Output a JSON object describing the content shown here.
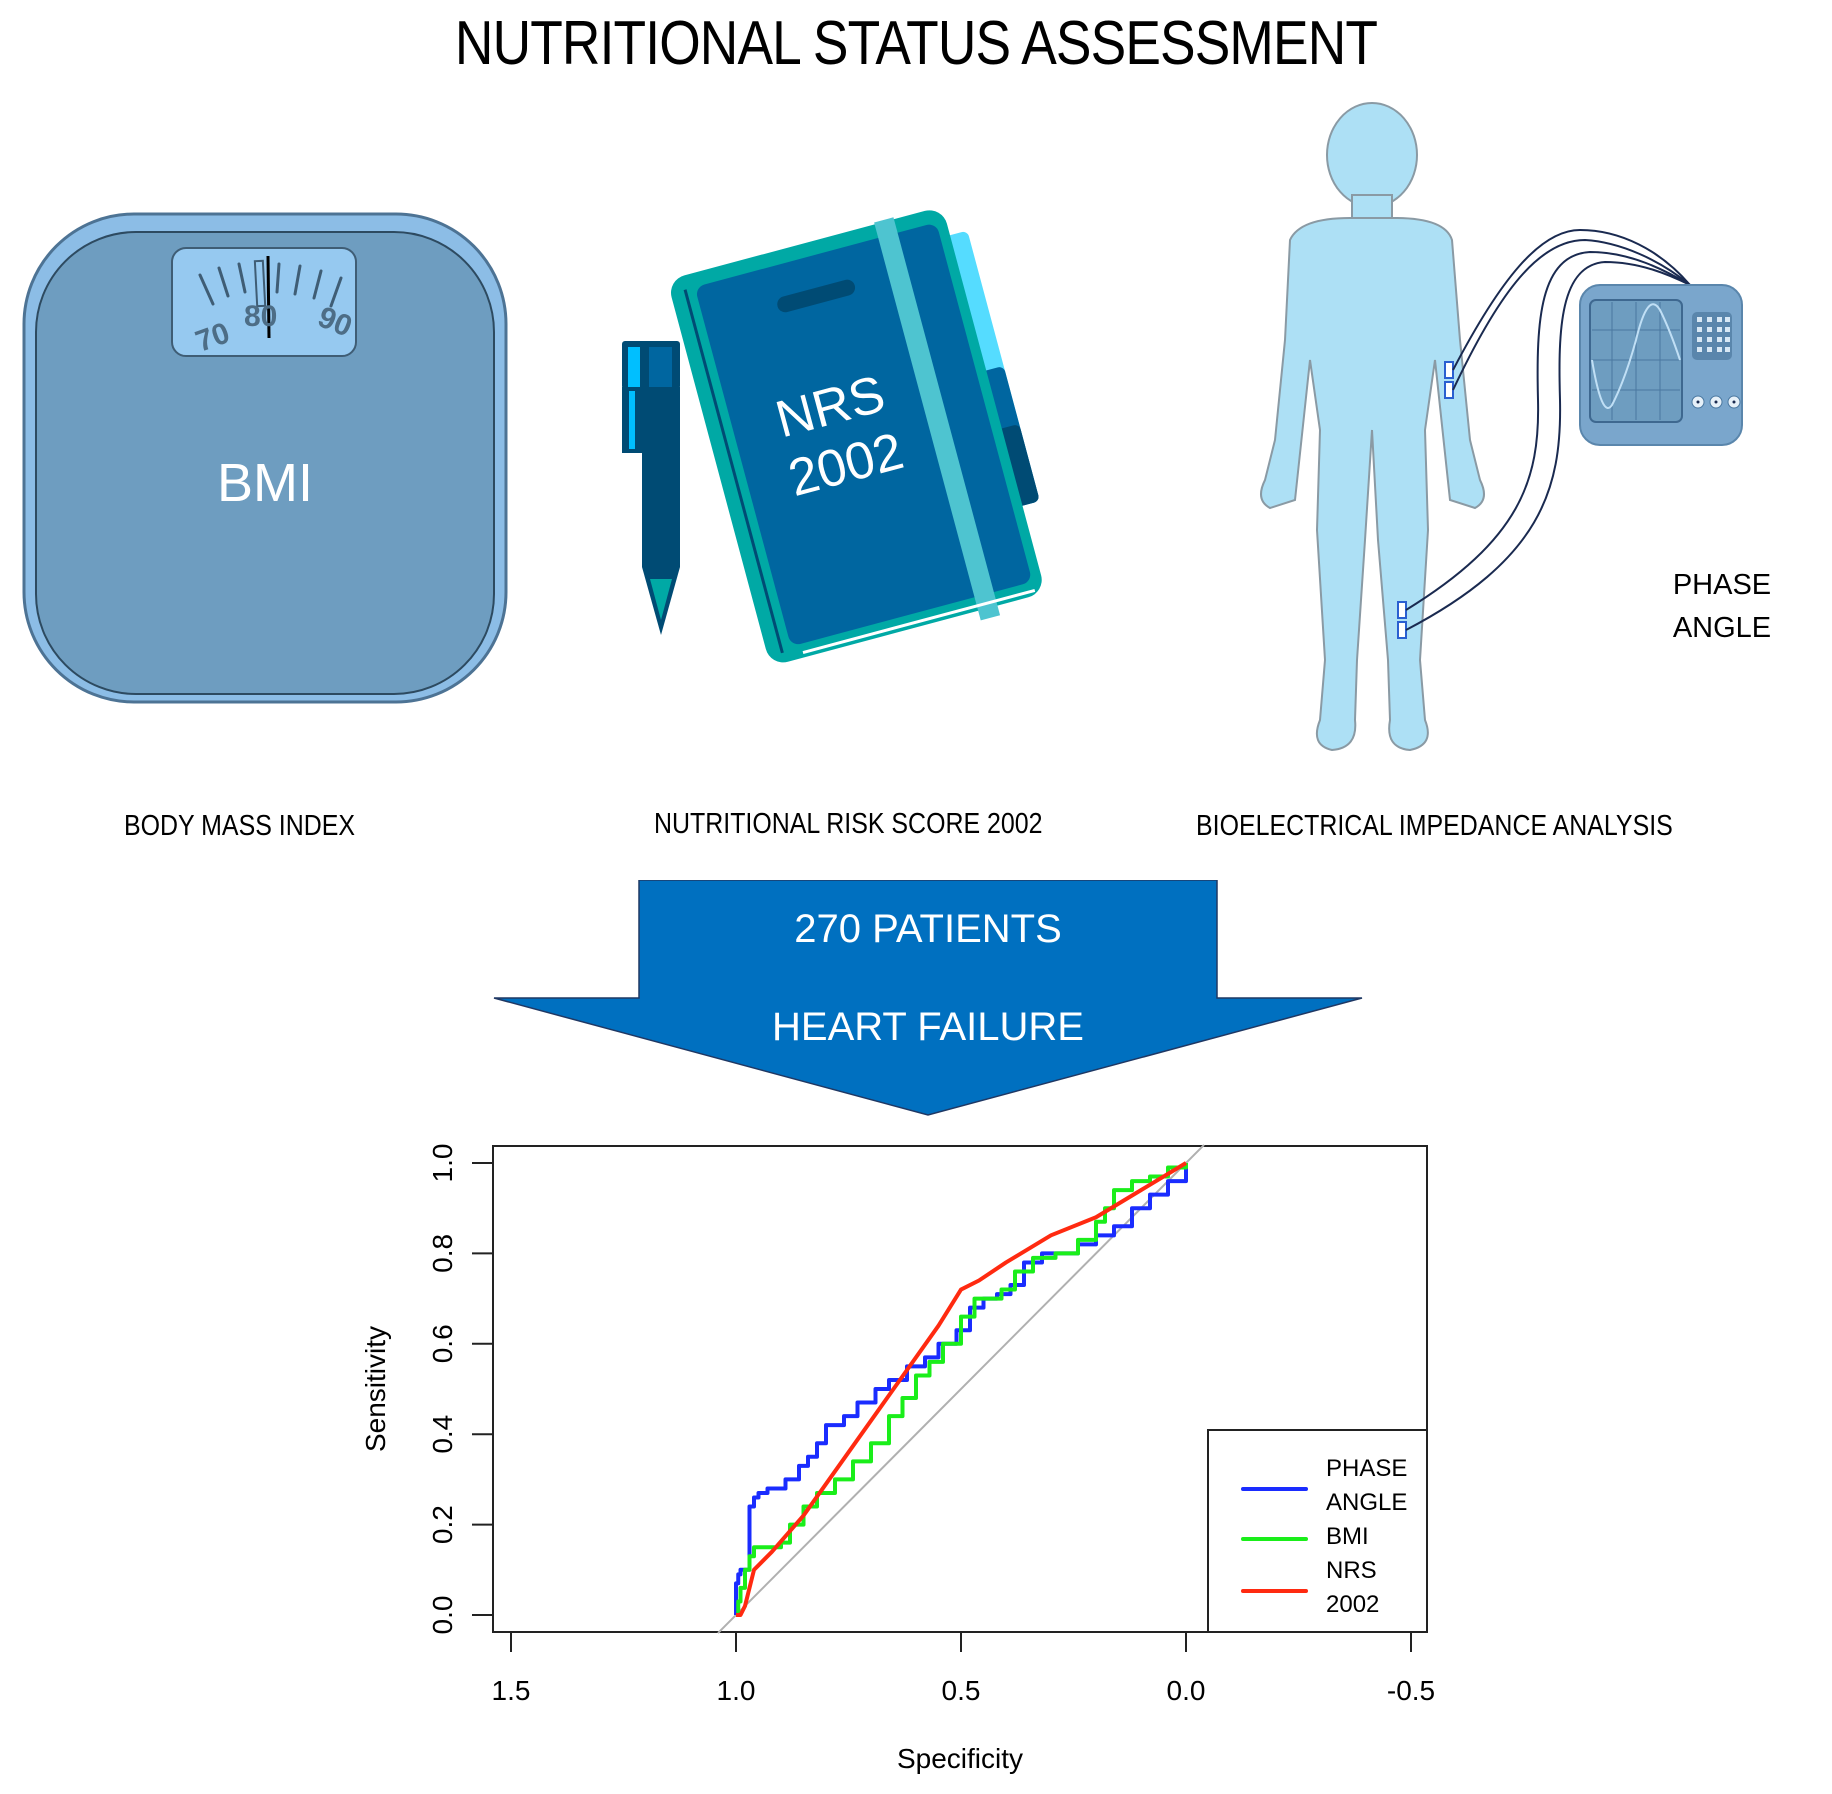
{
  "title": "NUTRITIONAL STATUS ASSESSMENT",
  "methods": [
    {
      "id": "bmi",
      "icon": "bathroom-scale-icon",
      "icon_text": "BMI",
      "dial_labels": [
        "70",
        "80",
        "90"
      ],
      "label": "BODY MASS INDEX"
    },
    {
      "id": "nrs",
      "icon": "notebook-and-pen-icon",
      "icon_text_line1": "NRS",
      "icon_text_line2": "2002",
      "label": "NUTRITIONAL RISK SCORE 2002"
    },
    {
      "id": "bia",
      "icon": "body-with-impedance-analyzer-icon",
      "device_label_line1": "PHASE",
      "device_label_line2": "ANGLE",
      "label": "BIOELECTRICAL IMPEDANCE ANALYSIS"
    }
  ],
  "arrow": {
    "line1": "270 PATIENTS",
    "line2": "HEART FAILURE",
    "color": "#0070c0"
  },
  "colors": {
    "scale_body": "#6e9dc0",
    "scale_rim": "#8cbde6",
    "dial_face": "#96c9f0",
    "book_cover": "#0066a0",
    "book_edge": "#00a9a5",
    "book_band": "#4ec4d0",
    "pen_dark": "#004b74",
    "body_silhouette": "#ade0f5",
    "device": "#7aa6cc",
    "phase_angle": "#1a2cff",
    "bmi": "#1aee1a",
    "nrs": "#ff2a10",
    "reference": "#b0b0b0"
  },
  "chart_data": {
    "type": "line",
    "title": "",
    "xlabel": "Specificity",
    "ylabel": "Sensitivity",
    "x_reversed": true,
    "xlim": [
      1.55,
      -0.55
    ],
    "ylim": [
      -0.04,
      1.04
    ],
    "x_ticks": [
      "1.5",
      "1.0",
      "0.5",
      "0.0",
      "-0.5"
    ],
    "y_ticks": [
      "0.0",
      "0.2",
      "0.4",
      "0.6",
      "0.8",
      "1.0"
    ],
    "grid": false,
    "legend_position": "bottom-right",
    "reference_line": {
      "name": "chance diagonal",
      "x": [
        1.04,
        -0.04
      ],
      "y": [
        -0.04,
        1.04
      ]
    },
    "series": [
      {
        "name": "PHASE ANGLE",
        "legend_lines": [
          "PHASE",
          "ANGLE"
        ],
        "color": "#1a2cff",
        "x": [
          1.0,
          1.0,
          0.995,
          0.99,
          0.97,
          0.97,
          0.96,
          0.95,
          0.93,
          0.91,
          0.89,
          0.86,
          0.84,
          0.82,
          0.8,
          0.76,
          0.73,
          0.69,
          0.66,
          0.62,
          0.58,
          0.55,
          0.51,
          0.48,
          0.45,
          0.42,
          0.39,
          0.36,
          0.32,
          0.28,
          0.24,
          0.2,
          0.16,
          0.12,
          0.08,
          0.04,
          0.0
        ],
        "y": [
          0.0,
          0.07,
          0.09,
          0.1,
          0.2,
          0.24,
          0.26,
          0.27,
          0.28,
          0.28,
          0.3,
          0.33,
          0.35,
          0.38,
          0.42,
          0.44,
          0.47,
          0.5,
          0.52,
          0.55,
          0.57,
          0.6,
          0.63,
          0.68,
          0.7,
          0.71,
          0.73,
          0.78,
          0.8,
          0.8,
          0.82,
          0.84,
          0.86,
          0.9,
          0.93,
          0.96,
          1.0
        ]
      },
      {
        "name": "BMI",
        "legend_lines": [
          "BMI"
        ],
        "color": "#1aee1a",
        "x": [
          1.0,
          0.995,
          0.99,
          0.98,
          0.97,
          0.96,
          0.94,
          0.9,
          0.88,
          0.85,
          0.82,
          0.78,
          0.74,
          0.7,
          0.66,
          0.63,
          0.6,
          0.57,
          0.54,
          0.5,
          0.47,
          0.44,
          0.41,
          0.38,
          0.34,
          0.29,
          0.24,
          0.2,
          0.18,
          0.16,
          0.12,
          0.08,
          0.04,
          0.0
        ],
        "y": [
          0.0,
          0.03,
          0.06,
          0.1,
          0.13,
          0.15,
          0.15,
          0.16,
          0.2,
          0.24,
          0.27,
          0.3,
          0.34,
          0.38,
          0.44,
          0.48,
          0.53,
          0.56,
          0.6,
          0.66,
          0.7,
          0.7,
          0.72,
          0.76,
          0.79,
          0.8,
          0.83,
          0.87,
          0.9,
          0.94,
          0.96,
          0.97,
          0.99,
          1.0
        ]
      },
      {
        "name": "NRS 2002",
        "legend_lines": [
          "NRS",
          "2002"
        ],
        "color": "#ff2a10",
        "x": [
          1.0,
          0.99,
          0.98,
          0.96,
          0.92,
          0.85,
          0.75,
          0.65,
          0.55,
          0.5,
          0.46,
          0.4,
          0.3,
          0.2,
          0.1,
          0.0
        ],
        "y": [
          0.0,
          0.0,
          0.02,
          0.1,
          0.14,
          0.22,
          0.36,
          0.5,
          0.64,
          0.72,
          0.74,
          0.78,
          0.84,
          0.88,
          0.94,
          1.0
        ]
      }
    ]
  }
}
